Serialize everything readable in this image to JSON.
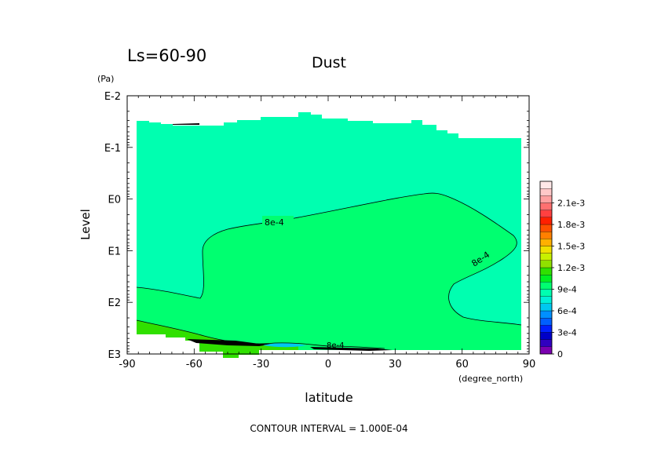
{
  "chart_data": {
    "type": "heatmap",
    "period_label": "Ls=60-90",
    "title": "Dust",
    "xlabel": "latitude",
    "x_unit": "(degree_north)",
    "ylabel": "Level",
    "y_unit": "(Pa)",
    "x_ticks": [
      "-90",
      "-60",
      "-30",
      "0",
      "30",
      "60",
      "90"
    ],
    "y_ticks": [
      "E-2",
      "E-1",
      "E0",
      "E1",
      "E2",
      "E3"
    ],
    "xlim": [
      -90,
      90
    ],
    "y_scale": "log",
    "ylim_exponent": [
      -2,
      3
    ],
    "contour_label": "8e-4",
    "contour_interval_text": "CONTOUR INTERVAL = 1.000E-04",
    "colorbar": {
      "tick_labels": [
        "0",
        "3e-4",
        "6e-4",
        "9e-4",
        "1.2e-3",
        "1.5e-3",
        "1.8e-3",
        "2.1e-3"
      ],
      "tick_values": [
        0,
        0.0003,
        0.0006,
        0.0009,
        0.0012,
        0.0015,
        0.0018,
        0.0021
      ],
      "levels": [
        0,
        0.0001,
        0.0002,
        0.0003,
        0.0004,
        0.0005,
        0.0006,
        0.0007,
        0.0008,
        0.0009,
        0.001,
        0.0011,
        0.0012,
        0.0013,
        0.0014,
        0.0015,
        0.0016,
        0.0017,
        0.0018,
        0.0019,
        0.002,
        0.0021,
        0.0022,
        0.0023
      ],
      "colors": [
        "#7a00b0",
        "#3000c0",
        "#0000c8",
        "#0020ff",
        "#0060ff",
        "#0090ff",
        "#00c8f0",
        "#00f0d8",
        "#00ffb0",
        "#00ff70",
        "#00f020",
        "#30e000",
        "#90e000",
        "#c8f000",
        "#f0e000",
        "#ffb000",
        "#ff8000",
        "#ff5000",
        "#ff2000",
        "#ff4040",
        "#ff7070",
        "#ffa0a0",
        "#ffc8c8",
        "#ffe8e8"
      ]
    },
    "field_colors": {
      "low_band": "#00ffb0",
      "main": "#00ff70",
      "bottom": "#30e000"
    }
  }
}
